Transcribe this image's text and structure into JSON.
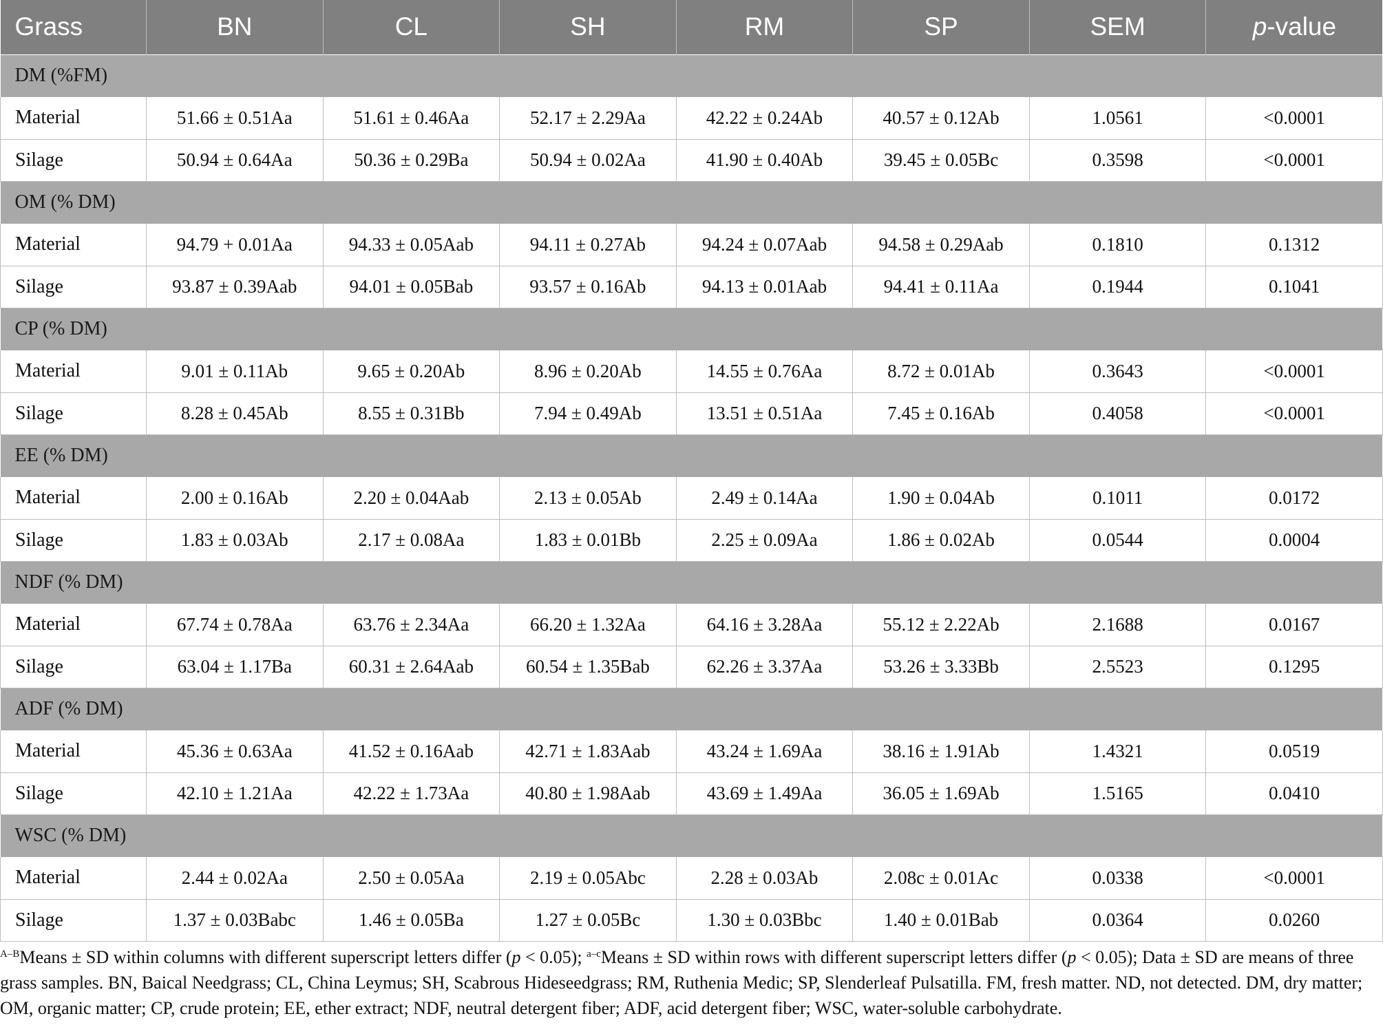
{
  "header": {
    "grass": "Grass",
    "bn": "BN",
    "cl": "CL",
    "sh": "SH",
    "rm": "RM",
    "sp": "SP",
    "sem": "SEM",
    "pvalue_p": "p",
    "pvalue_rest": "-value"
  },
  "groups": [
    {
      "label": "DM (%FM)",
      "rows": [
        [
          "Material",
          "51.66 ± 0.51Aa",
          "51.61 ± 0.46Aa",
          "52.17 ± 2.29Aa",
          "42.22 ± 0.24Ab",
          "40.57 ± 0.12Ab",
          "1.0561",
          "<0.0001"
        ],
        [
          "Silage",
          "50.94 ± 0.64Aa",
          "50.36 ± 0.29Ba",
          "50.94 ± 0.02Aa",
          "41.90 ± 0.40Ab",
          "39.45 ± 0.05Bc",
          "0.3598",
          "<0.0001"
        ]
      ]
    },
    {
      "label": "OM (% DM)",
      "rows": [
        [
          "Material",
          "94.79 + 0.01Aa",
          "94.33 ± 0.05Aab",
          "94.11 ± 0.27Ab",
          "94.24 ± 0.07Aab",
          "94.58 ± 0.29Aab",
          "0.1810",
          "0.1312"
        ],
        [
          "Silage",
          "93.87 ± 0.39Aab",
          "94.01 ± 0.05Bab",
          "93.57 ± 0.16Ab",
          "94.13 ± 0.01Aab",
          "94.41 ± 0.11Aa",
          "0.1944",
          "0.1041"
        ]
      ]
    },
    {
      "label": "CP (% DM)",
      "rows": [
        [
          "Material",
          "9.01 ± 0.11Ab",
          "9.65 ± 0.20Ab",
          "8.96 ± 0.20Ab",
          "14.55 ± 0.76Aa",
          "8.72 ± 0.01Ab",
          "0.3643",
          "<0.0001"
        ],
        [
          "Silage",
          "8.28 ± 0.45Ab",
          "8.55 ± 0.31Bb",
          "7.94 ± 0.49Ab",
          "13.51 ± 0.51Aa",
          "7.45 ± 0.16Ab",
          "0.4058",
          "<0.0001"
        ]
      ]
    },
    {
      "label": "EE (% DM)",
      "rows": [
        [
          "Material",
          "2.00 ± 0.16Ab",
          "2.20 ± 0.04Aab",
          "2.13 ± 0.05Ab",
          "2.49 ± 0.14Aa",
          "1.90 ± 0.04Ab",
          "0.1011",
          "0.0172"
        ],
        [
          "Silage",
          "1.83 ± 0.03Ab",
          "2.17 ± 0.08Aa",
          "1.83 ± 0.01Bb",
          "2.25 ± 0.09Aa",
          "1.86 ± 0.02Ab",
          "0.0544",
          "0.0004"
        ]
      ]
    },
    {
      "label": "NDF (% DM)",
      "rows": [
        [
          "Material",
          "67.74 ± 0.78Aa",
          "63.76 ± 2.34Aa",
          "66.20 ± 1.32Aa",
          "64.16 ± 3.28Aa",
          "55.12 ± 2.22Ab",
          "2.1688",
          "0.0167"
        ],
        [
          "Silage",
          "63.04 ± 1.17Ba",
          "60.31 ± 2.64Aab",
          "60.54 ± 1.35Bab",
          "62.26 ± 3.37Aa",
          "53.26 ± 3.33Bb",
          "2.5523",
          "0.1295"
        ]
      ]
    },
    {
      "label": "ADF (% DM)",
      "rows": [
        [
          "Material",
          "45.36 ± 0.63Aa",
          "41.52 ± 0.16Aab",
          "42.71 ± 1.83Aab",
          "43.24 ± 1.69Aa",
          "38.16 ± 1.91Ab",
          "1.4321",
          "0.0519"
        ],
        [
          "Silage",
          "42.10 ± 1.21Aa",
          "42.22 ± 1.73Aa",
          "40.80 ± 1.98Aab",
          "43.69 ± 1.49Aa",
          "36.05 ± 1.69Ab",
          "1.5165",
          "0.0410"
        ]
      ]
    },
    {
      "label": "WSC (% DM)",
      "rows": [
        [
          "Material",
          "2.44 ± 0.02Aa",
          "2.50 ± 0.05Aa",
          "2.19 ± 0.05Abc",
          "2.28 ± 0.03Ab",
          "2.08c ± 0.01Ac",
          "0.0338",
          "<0.0001"
        ],
        [
          "Silage",
          "1.37 ± 0.03Babc",
          "1.46 ± 0.05Ba",
          "1.27 ± 0.05Bc",
          "1.30 ± 0.03Bbc",
          "1.40 ± 0.01Bab",
          "0.0364",
          "0.0260"
        ]
      ]
    }
  ],
  "footnote": {
    "sup_upper": "A–B",
    "text_upper": "Means ± SD within columns with different superscript letters differ (",
    "p_symbol": "p",
    "text_p_threshold": " < 0.05); ",
    "sup_lower": "a–c",
    "text_lower": "Means ± SD within rows with different superscript letters differ (",
    "text_rest": " < 0.05); Data ± SD are means of three grass samples. BN, Baical Needgrass; CL, China Leymus; SH, Scabrous Hideseedgrass; RM, Ruthenia Medic; SP, Slenderleaf Pulsatilla. FM, fresh matter. ND, not detected. DM, dry matter; OM, organic matter; CP, crude protein; EE, ether extract; NDF, neutral detergent fiber; ADF, acid detergent fiber; WSC, water-soluble carbohydrate."
  }
}
